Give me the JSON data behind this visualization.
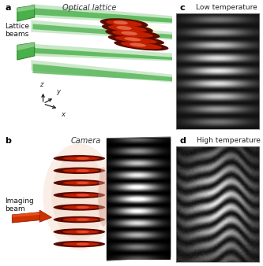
{
  "panel_labels": [
    "a",
    "b",
    "c",
    "d"
  ],
  "panel_a_title": "Optical lattice",
  "panel_b_title": "Camera",
  "panel_c_title": "Low temperature",
  "panel_d_title": "High temperature",
  "panel_a_label": "Lattice\nbeams",
  "panel_b_label": "Imaging\nbeam",
  "bg_color": "#ffffff",
  "label_fontsize": 7,
  "title_fontsize": 7,
  "bold_label_fontsize": 8,
  "green_dark": "#2d8a2d",
  "green_mid": "#4ab04a",
  "green_light": "#90d090",
  "red_dark": "#5a0a00",
  "red_mid": "#cc2200",
  "red_bright": "#ff5522",
  "orange_beam": "#cc3300"
}
